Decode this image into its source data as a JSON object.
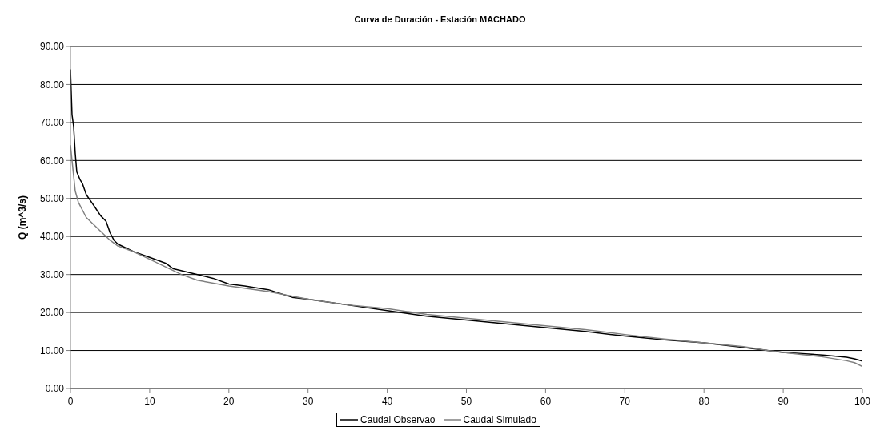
{
  "chart_data": {
    "type": "line",
    "title": "Curva de Duración - Estación MACHADO",
    "ylabel": "Q (m^3/s)",
    "xlim": [
      0,
      100
    ],
    "xticks": [
      0,
      10,
      20,
      30,
      40,
      50,
      60,
      70,
      80,
      90,
      100
    ],
    "ylim": [
      0,
      90
    ],
    "yticks": [
      {
        "value": 0,
        "label": "0.00"
      },
      {
        "value": 10,
        "label": "10.00"
      },
      {
        "value": 20,
        "label": "20.00"
      },
      {
        "value": 30,
        "label": "30.00"
      },
      {
        "value": 40,
        "label": "40.00"
      },
      {
        "value": 50,
        "label": "50.00"
      },
      {
        "value": 60,
        "label": "60.00"
      },
      {
        "value": 70,
        "label": "70.00"
      },
      {
        "value": 80,
        "label": "80.00"
      },
      {
        "value": 90,
        "label": "90.00"
      }
    ],
    "grid": "y",
    "legend": "bottom",
    "marker": "none",
    "line_style": "solid",
    "series": [
      {
        "name": "Caudal Observao",
        "color": "#000000",
        "x": [
          0,
          0.2,
          0.4,
          0.6,
          0.8,
          1.2,
          1.5,
          2,
          3,
          3.8,
          4.5,
          5,
          5.5,
          6,
          8,
          10,
          12,
          13,
          15,
          18,
          20,
          22,
          25,
          28,
          30,
          35,
          40,
          45,
          50,
          55,
          60,
          65,
          70,
          75,
          80,
          85,
          88,
          90,
          95,
          98,
          99,
          100
        ],
        "values": [
          84,
          72,
          69,
          62,
          57,
          55,
          54,
          51,
          48,
          45.5,
          44,
          41,
          39,
          38,
          36,
          34.5,
          33,
          31.5,
          30.5,
          29,
          27.5,
          27,
          26,
          24,
          23.5,
          22,
          20.5,
          19,
          18,
          17,
          16,
          15,
          13.8,
          12.8,
          12,
          10.8,
          10,
          9.5,
          8.8,
          8.2,
          7.8,
          7.2
        ]
      },
      {
        "name": "Caudal Simulado",
        "color": "#808080",
        "x": [
          0,
          0.3,
          0.6,
          1,
          1.5,
          2,
          3,
          4,
          5,
          6,
          8,
          10,
          12,
          14,
          16,
          20,
          25,
          30,
          35,
          40,
          45,
          50,
          55,
          60,
          65,
          70,
          75,
          80,
          85,
          88,
          90,
          95,
          98,
          99,
          100
        ],
        "values": [
          64,
          58,
          52,
          49,
          47,
          45,
          43,
          41,
          39,
          37.5,
          36,
          34,
          32,
          30,
          28.5,
          27,
          25.5,
          23.5,
          22,
          21,
          19.5,
          18.5,
          17.5,
          16.5,
          15.5,
          14.2,
          13,
          12,
          11,
          10,
          9.5,
          8.3,
          7.3,
          6.8,
          5.8
        ]
      }
    ]
  }
}
